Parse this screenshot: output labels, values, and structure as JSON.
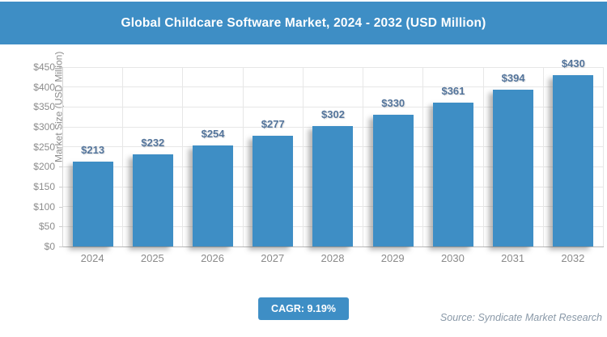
{
  "header": {
    "title": "Global Childcare Software Market, 2024 - 2032 (USD Million)"
  },
  "chart_data": {
    "type": "bar",
    "title": "Global Childcare Software Market, 2024 - 2032 (USD Million)",
    "categories": [
      "2024",
      "2025",
      "2026",
      "2027",
      "2028",
      "2029",
      "2030",
      "2031",
      "2032"
    ],
    "values": [
      213,
      232,
      254,
      277,
      302,
      330,
      361,
      394,
      430
    ],
    "value_prefix": "$",
    "xlabel": "",
    "ylabel": "Market Size (USD Million)",
    "ylim": [
      0,
      450
    ],
    "ytick_step": 50,
    "ytick_prefix": "$",
    "grid": true,
    "legend": false
  },
  "footer": {
    "cagr_label": "CAGR: 9.19%",
    "source": "Source: Syndicate Market Research"
  },
  "colors": {
    "accent": "#3E8EC5",
    "bar": "#3E8EC5",
    "value_label": "#53749B",
    "axis_text": "#8C8C8C",
    "gridline": "#E7E7E7",
    "axis_line": "#B8B8B8",
    "source_text": "#8A99A8"
  }
}
